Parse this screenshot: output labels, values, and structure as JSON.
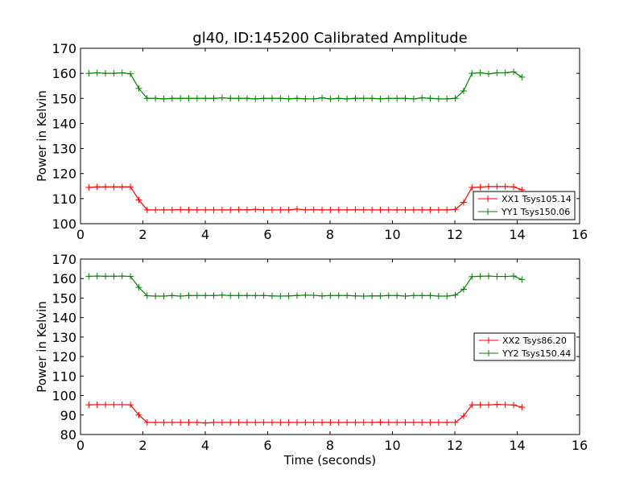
{
  "chart_data": [
    {
      "type": "line",
      "title": "gl40, ID:145200 Calibrated Amplitude",
      "xlabel": "",
      "ylabel": "Power in Kelvin",
      "xlim": [
        0,
        16
      ],
      "ylim": [
        100,
        170
      ],
      "xticks": [
        0,
        2,
        4,
        6,
        8,
        10,
        12,
        14,
        16
      ],
      "yticks": [
        100,
        110,
        120,
        130,
        140,
        150,
        160,
        170
      ],
      "legend_position": "lower-right",
      "series": [
        {
          "name": "XX1 Tsys105.14",
          "color": "#ff0000",
          "values": [
            114.5,
            114.7,
            114.7,
            114.7,
            114.7,
            114.7,
            109.5,
            105.5,
            105.5,
            105.5,
            105.5,
            105.6,
            105.5,
            105.5,
            105.5,
            105.5,
            105.5,
            105.5,
            105.6,
            105.5,
            105.7,
            105.5,
            105.5,
            105.5,
            105.5,
            105.8,
            105.5,
            105.6,
            105.5,
            105.5,
            105.5,
            105.5,
            105.6,
            105.5,
            105.5,
            105.5,
            105.5,
            105.5,
            105.5,
            105.5,
            105.5,
            105.5,
            105.5,
            105.5,
            105.7,
            108.5,
            114.5,
            114.6,
            114.8,
            114.8,
            114.8,
            114.7,
            113.5
          ]
        },
        {
          "name": "YY1 Tsys150.06",
          "color": "#008000",
          "values": [
            160,
            160.2,
            160,
            160,
            160.2,
            159.8,
            154,
            150,
            150,
            149.8,
            150,
            150,
            150,
            150,
            150,
            150,
            150.2,
            150,
            150,
            150,
            149.8,
            150,
            150,
            150,
            149.8,
            150,
            149.8,
            149.8,
            150.2,
            149.8,
            150,
            149.8,
            150,
            150,
            150,
            149.8,
            150,
            150,
            150,
            149.8,
            150.2,
            150,
            149.8,
            149.8,
            150,
            153,
            160,
            160.2,
            159.8,
            160.2,
            160.2,
            160.6,
            158.5
          ]
        }
      ]
    },
    {
      "type": "line",
      "title": "",
      "xlabel": "Time (seconds)",
      "ylabel": "Power in Kelvin",
      "xlim": [
        0,
        16
      ],
      "ylim": [
        80,
        170
      ],
      "xticks": [
        0,
        2,
        4,
        6,
        8,
        10,
        12,
        14,
        16
      ],
      "yticks": [
        80,
        90,
        100,
        110,
        120,
        130,
        140,
        150,
        160,
        170
      ],
      "legend_position": "center-right",
      "series": [
        {
          "name": "XX2 Tsys86.20",
          "color": "#ff0000",
          "values": [
            95.2,
            95.3,
            95.3,
            95.3,
            95.3,
            95.2,
            90,
            86.2,
            86.2,
            86.2,
            86.2,
            86.2,
            86.2,
            86.2,
            85.9,
            86.2,
            86.2,
            86.2,
            86.2,
            86.2,
            86.2,
            86.2,
            86.2,
            86.2,
            86.2,
            86.2,
            86.2,
            86.2,
            86.2,
            86.2,
            86.2,
            86.2,
            86.2,
            86.2,
            86.2,
            86.3,
            86.2,
            86.2,
            86.2,
            86.2,
            86.2,
            86.2,
            86.2,
            86.2,
            86.2,
            89.5,
            95.2,
            95.2,
            95.2,
            95.4,
            95.3,
            95.1,
            94
          ]
        },
        {
          "name": "YY2 Tsys150.44",
          "color": "#008000",
          "values": [
            161.2,
            161.3,
            161.2,
            161.2,
            161.3,
            161.1,
            155.5,
            151.2,
            151,
            151,
            151.3,
            151,
            151.3,
            151.3,
            151.3,
            151.3,
            151.5,
            151.3,
            151.3,
            151.3,
            151.3,
            151.3,
            151.1,
            151,
            151.1,
            151.3,
            151.5,
            151.4,
            151.1,
            151.3,
            151.3,
            151.3,
            151.1,
            151,
            151.1,
            151.1,
            151.3,
            151.3,
            151,
            151.3,
            151.3,
            151.3,
            151,
            151,
            151.5,
            154.5,
            161,
            161.2,
            161.3,
            161.1,
            161.1,
            161.3,
            159.5
          ]
        }
      ]
    }
  ]
}
